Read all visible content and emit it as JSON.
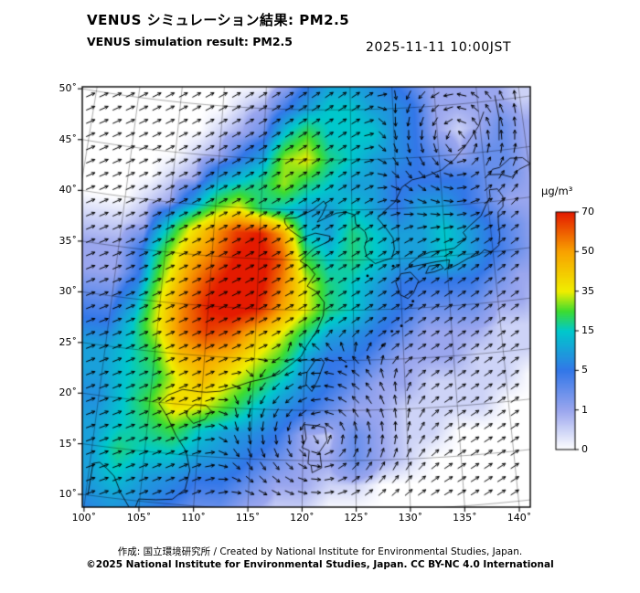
{
  "figure": {
    "title_jp": "VENUS シミュレーション結果: PM2.5",
    "title_en": "VENUS simulation result: PM2.5",
    "timestamp": "2025-11-11 10:00JST",
    "credit_line": "作成: 国立環境研究所 / Created by National Institute for Environmental Studies, Japan.",
    "license_line": "©2025 National Institute for Environmental Studies, Japan. CC BY-NC 4.0 International"
  },
  "chart_data": {
    "type": "heatmap",
    "title": "VENUS simulation result: PM2.5",
    "variable": "PM2.5",
    "units": "μg/m³",
    "axes": {
      "lat_tick_values": [
        10,
        15,
        20,
        25,
        30,
        35,
        40,
        45,
        50
      ],
      "lat_tick_labels": [
        "10˚",
        "15˚",
        "20˚",
        "25˚",
        "30˚",
        "35˚",
        "40˚",
        "45˚",
        "50˚"
      ],
      "lon_tick_values": [
        100,
        105,
        110,
        115,
        120,
        125,
        130,
        135,
        140
      ],
      "lon_tick_labels": [
        "100˚",
        "105˚",
        "110˚",
        "115˚",
        "120˚",
        "125˚",
        "130˚",
        "135˚",
        "140˚"
      ]
    },
    "colorbar": {
      "label": "μg/m³",
      "tick_values": [
        0,
        1,
        5,
        15,
        35,
        50,
        70
      ],
      "tick_labels": [
        "0",
        "1",
        "5",
        "15",
        "35",
        "50",
        "70"
      ],
      "scale_values": [
        0,
        1,
        5,
        15,
        25,
        35,
        50,
        70
      ],
      "scale_colors": [
        "#ffffff",
        "#9aa6ee",
        "#3377e8",
        "#00c8cc",
        "#3ddc30",
        "#f0ee00",
        "#f8a200",
        "#e41a00"
      ]
    },
    "grid": {
      "lon_start": 100,
      "lon_step": 2.5,
      "lat_start": 52.5,
      "lat_step": -2.5,
      "lon_range": [
        100,
        145
      ],
      "lat_range": [
        7.5,
        52.5
      ],
      "values": [
        [
          -1,
          -1,
          -1,
          -1,
          -1,
          -1,
          -1,
          1,
          5,
          10,
          10,
          8,
          5,
          3,
          1,
          1,
          1,
          1,
          0.5
        ],
        [
          -1,
          -1,
          -1,
          -1,
          -1,
          0.5,
          1,
          5,
          10,
          15,
          15,
          10,
          8,
          5,
          1,
          1,
          1,
          1,
          0.5
        ],
        [
          -1,
          -1,
          -1,
          -1,
          0.5,
          1,
          3,
          15,
          25,
          15,
          15,
          15,
          8,
          5,
          1,
          0.5,
          1,
          3,
          1
        ],
        [
          -1,
          -1,
          -1,
          0.5,
          1,
          5,
          10,
          30,
          35,
          20,
          15,
          10,
          8,
          5,
          3,
          1,
          3,
          3,
          1
        ],
        [
          -1,
          -1,
          0.5,
          1,
          10,
          15,
          20,
          30,
          20,
          15,
          10,
          10,
          5,
          5,
          5,
          5,
          3,
          3,
          1
        ],
        [
          -1,
          0.5,
          1,
          10,
          25,
          35,
          20,
          15,
          10,
          10,
          15,
          10,
          5,
          10,
          10,
          5,
          3,
          1,
          1
        ],
        [
          0.5,
          1,
          15,
          35,
          50,
          65,
          70,
          50,
          15,
          10,
          20,
          15,
          10,
          10,
          15,
          10,
          5,
          3,
          1
        ],
        [
          1,
          5,
          25,
          45,
          55,
          70,
          75,
          60,
          25,
          15,
          20,
          15,
          10,
          10,
          15,
          10,
          5,
          3,
          1
        ],
        [
          1,
          5,
          30,
          50,
          65,
          75,
          75,
          55,
          35,
          20,
          15,
          10,
          5,
          5,
          5,
          5,
          3,
          1,
          1
        ],
        [
          3,
          10,
          35,
          55,
          70,
          75,
          70,
          50,
          35,
          20,
          15,
          8,
          5,
          3,
          3,
          3,
          1,
          1,
          0.5
        ],
        [
          5,
          15,
          35,
          55,
          65,
          60,
          45,
          35,
          20,
          10,
          8,
          5,
          3,
          1,
          1,
          1,
          0.5,
          0.5,
          0.5
        ],
        [
          10,
          15,
          25,
          45,
          50,
          45,
          35,
          25,
          10,
          5,
          5,
          3,
          1,
          1,
          1,
          0.5,
          0.5,
          0.5,
          -1
        ],
        [
          10,
          15,
          20,
          35,
          45,
          35,
          25,
          15,
          8,
          5,
          3,
          1,
          1,
          0.5,
          0.5,
          0.5,
          0.5,
          -1,
          -1
        ],
        [
          8,
          15,
          25,
          40,
          35,
          25,
          15,
          8,
          5,
          3,
          1,
          1,
          0.5,
          0.5,
          0.5,
          0.5,
          -1,
          -1,
          -1
        ],
        [
          10,
          15,
          20,
          25,
          15,
          10,
          8,
          5,
          1,
          0.5,
          3,
          1,
          0.5,
          0.5,
          -1,
          -1,
          -1,
          -1,
          -1
        ],
        [
          10,
          20,
          15,
          15,
          10,
          8,
          5,
          3,
          1,
          1,
          3,
          1,
          0.5,
          -1,
          -1,
          -1,
          -1,
          -1,
          -1
        ],
        [
          10,
          15,
          10,
          8,
          5,
          5,
          3,
          1,
          1,
          0.5,
          0.5,
          -1,
          -1,
          -1,
          -1,
          -1,
          -1,
          -1,
          -1
        ],
        [
          8,
          10,
          8,
          5,
          3,
          3,
          1,
          0.5,
          0.5,
          -1,
          -1,
          -1,
          -1,
          -1,
          -1,
          -1,
          -1,
          -1,
          -1
        ],
        [
          5,
          8,
          5,
          3,
          1,
          1,
          0.5,
          -1,
          -1,
          -1,
          -1,
          -1,
          -1,
          -1,
          -1,
          -1,
          -1,
          -1,
          -1
        ]
      ]
    },
    "wind": {
      "base": {
        "u": 0.9,
        "v": 0.5
      },
      "vortices": [
        {
          "name": "typhoon-low",
          "lon": 121.8,
          "lat": 17.3,
          "strength": 9,
          "radius": 4.5,
          "rotation": "ccw"
        },
        {
          "name": "northern-low",
          "lon": 137.3,
          "lat": 46.3,
          "strength": 6,
          "radius": 4.5,
          "rotation": "ccw"
        }
      ]
    },
    "coastlines": [
      {
        "name": "vietnam-east",
        "closed": false,
        "points": [
          [
            105.9,
            19.9
          ],
          [
            106.8,
            18.7
          ],
          [
            107.8,
            16.9
          ],
          [
            108.9,
            15.4
          ],
          [
            109.4,
            13.5
          ],
          [
            109.1,
            11.6
          ],
          [
            108,
            10.5
          ],
          [
            106.5,
            10.3
          ],
          [
            104.9,
            10.2
          ],
          [
            104.5,
            8.7
          ]
        ]
      },
      {
        "name": "gulf-of-thailand",
        "closed": false,
        "points": [
          [
            104.5,
            8.7
          ],
          [
            103.2,
            10.6
          ],
          [
            102.4,
            12.2
          ],
          [
            101.6,
            12.9
          ],
          [
            100.9,
            13.4
          ],
          [
            100.3,
            13.2
          ],
          [
            100.2,
            10
          ]
        ]
      },
      {
        "name": "china-coast",
        "closed": false,
        "points": [
          [
            105.9,
            19.9
          ],
          [
            106.7,
            20.8
          ],
          [
            108.1,
            21.5
          ],
          [
            109.7,
            21.4
          ],
          [
            110.4,
            21.4
          ],
          [
            111.8,
            21.6
          ],
          [
            113.2,
            22.1
          ],
          [
            114.7,
            22.7
          ],
          [
            116.2,
            23.1
          ],
          [
            117.5,
            23.6
          ],
          [
            118.6,
            24.5
          ],
          [
            119.7,
            25.4
          ],
          [
            120.2,
            26.4
          ],
          [
            121.2,
            27.9
          ],
          [
            121.9,
            29.5
          ],
          [
            122,
            30.8
          ],
          [
            121.1,
            31.9
          ],
          [
            120.2,
            32.4
          ],
          [
            121,
            33.6
          ],
          [
            120.3,
            34.4
          ],
          [
            119.4,
            34.9
          ],
          [
            120.9,
            36.2
          ],
          [
            122.5,
            36.9
          ],
          [
            122.6,
            37.4
          ],
          [
            121,
            37.7
          ],
          [
            119.5,
            37.2
          ],
          [
            118.2,
            38
          ],
          [
            117.7,
            38.6
          ],
          [
            117.6,
            39.1
          ],
          [
            118.9,
            39.2
          ],
          [
            120.7,
            40
          ],
          [
            121.9,
            40.9
          ],
          [
            122.2,
            40.5
          ],
          [
            121.7,
            39.5
          ],
          [
            121.2,
            38.8
          ],
          [
            122.3,
            39.3
          ],
          [
            123.3,
            39.7
          ],
          [
            124.3,
            39.8
          ]
        ]
      },
      {
        "name": "korea-russia-coast",
        "closed": false,
        "points": [
          [
            124.3,
            39.8
          ],
          [
            125.3,
            39.5
          ],
          [
            125.4,
            38.6
          ],
          [
            126.4,
            37.8
          ],
          [
            126.6,
            37.1
          ],
          [
            126.3,
            36.3
          ],
          [
            126.5,
            35.3
          ],
          [
            127.4,
            34.6
          ],
          [
            128.4,
            34.9
          ],
          [
            129.2,
            35.1
          ],
          [
            129.5,
            36
          ],
          [
            129.4,
            37.1
          ],
          [
            128.6,
            38.2
          ],
          [
            127.8,
            39.1
          ],
          [
            128.7,
            39.9
          ],
          [
            129.8,
            40.7
          ],
          [
            130.6,
            42.1
          ],
          [
            131.8,
            42.8
          ],
          [
            133.1,
            43
          ],
          [
            135.2,
            43.6
          ],
          [
            136.8,
            44.6
          ],
          [
            138.3,
            46
          ],
          [
            139.8,
            47.6
          ],
          [
            140.6,
            49
          ]
        ]
      },
      {
        "name": "sakhalin",
        "closed": false,
        "points": [
          [
            142,
            46
          ],
          [
            142.3,
            48.2
          ],
          [
            142.1,
            50.5
          ]
        ]
      },
      {
        "name": "honshu",
        "closed": true,
        "points": [
          [
            131,
            34.1
          ],
          [
            132.4,
            34.3
          ],
          [
            133.9,
            34.5
          ],
          [
            135.3,
            34.6
          ],
          [
            135.1,
            33.7
          ],
          [
            136.2,
            34.1
          ],
          [
            137.3,
            34.6
          ],
          [
            138.6,
            34.9
          ],
          [
            139.1,
            35.3
          ],
          [
            139.8,
            35
          ],
          [
            140.7,
            35.6
          ],
          [
            140.9,
            36.6
          ],
          [
            140.9,
            37.8
          ],
          [
            141,
            38.9
          ],
          [
            141.6,
            39.4
          ],
          [
            141.7,
            40.4
          ],
          [
            141.2,
            41.2
          ],
          [
            140.3,
            41.2
          ],
          [
            140.3,
            40.5
          ],
          [
            139.8,
            39.8
          ],
          [
            139.1,
            38.7
          ],
          [
            137.9,
            37.9
          ],
          [
            137,
            37.2
          ],
          [
            137.3,
            36.7
          ],
          [
            136.7,
            36.2
          ],
          [
            135.9,
            35.7
          ],
          [
            134.9,
            35.6
          ],
          [
            133.3,
            35.5
          ],
          [
            132.1,
            35.1
          ],
          [
            131,
            34.4
          ]
        ]
      },
      {
        "name": "kyushu",
        "closed": true,
        "points": [
          [
            130.1,
            33.5
          ],
          [
            129.5,
            32.7
          ],
          [
            129.9,
            31.4
          ],
          [
            130.7,
            31
          ],
          [
            131.3,
            31.5
          ],
          [
            131.9,
            32.7
          ],
          [
            131.1,
            33.6
          ]
        ]
      },
      {
        "name": "shikoku",
        "closed": true,
        "points": [
          [
            132.7,
            33.4
          ],
          [
            133.6,
            33.5
          ],
          [
            134.6,
            33.8
          ],
          [
            134.3,
            34.2
          ],
          [
            133.1,
            34.1
          ]
        ]
      },
      {
        "name": "hokkaido",
        "closed": true,
        "points": [
          [
            140.4,
            42.7
          ],
          [
            141.8,
            42.6
          ],
          [
            142.9,
            42.2
          ],
          [
            143.9,
            42.9
          ],
          [
            145.2,
            43.3
          ],
          [
            144.4,
            44
          ],
          [
            143,
            44.1
          ],
          [
            141.7,
            43.3
          ],
          [
            140.9,
            43.2
          ]
        ]
      },
      {
        "name": "taiwan",
        "closed": true,
        "points": [
          [
            121.7,
            25.2
          ],
          [
            122,
            24.8
          ],
          [
            121.4,
            23.1
          ],
          [
            120.8,
            21.9
          ],
          [
            120.2,
            22.6
          ],
          [
            120.3,
            23.8
          ],
          [
            121.1,
            25
          ]
        ]
      },
      {
        "name": "hainan",
        "closed": true,
        "points": [
          [
            108.7,
            19.4
          ],
          [
            109.4,
            20.1
          ],
          [
            110.5,
            20.1
          ],
          [
            111,
            19.6
          ],
          [
            110.5,
            18.7
          ],
          [
            109.4,
            18.2
          ],
          [
            108.7,
            18.9
          ]
        ]
      },
      {
        "name": "luzon",
        "closed": true,
        "points": [
          [
            120.1,
            18.6
          ],
          [
            121.3,
            18.5
          ],
          [
            122.1,
            18.3
          ],
          [
            122.3,
            17
          ],
          [
            121.6,
            15.9
          ],
          [
            121.8,
            14.3
          ],
          [
            120.9,
            13.8
          ],
          [
            120.8,
            14.5
          ],
          [
            120.5,
            14.7
          ],
          [
            120.6,
            16
          ],
          [
            119.9,
            16.3
          ],
          [
            120.3,
            17.2
          ]
        ]
      }
    ],
    "island_points": [
      [
        129.3,
        34.3
      ],
      [
        126.55,
        33.4
      ],
      [
        127.9,
        26.4
      ],
      [
        128.9,
        27.8
      ],
      [
        129.9,
        28.3
      ],
      [
        124.2,
        24.4
      ],
      [
        131.2,
        30.7
      ]
    ]
  }
}
